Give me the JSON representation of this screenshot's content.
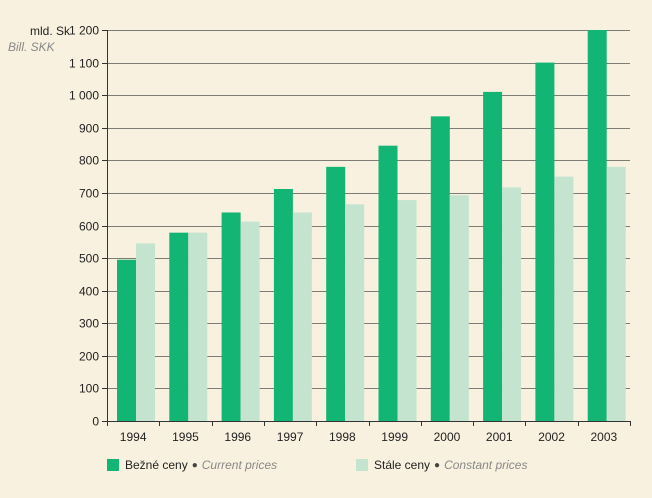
{
  "chart_data": {
    "type": "bar",
    "categories": [
      "1994",
      "1995",
      "1996",
      "1997",
      "1998",
      "1999",
      "2000",
      "2001",
      "2002",
      "2003"
    ],
    "series": [
      {
        "name": "Bežné ceny • Current prices",
        "values": [
          495,
          578,
          640,
          712,
          780,
          845,
          935,
          1010,
          1100,
          1200
        ],
        "color": "#12b574"
      },
      {
        "name": "Stále ceny • Constant prices",
        "values": [
          545,
          578,
          612,
          640,
          665,
          678,
          693,
          717,
          750,
          780
        ],
        "color": "#c4e4cf"
      }
    ],
    "ylabel": "mld. Sk",
    "ylabel_en": "Bill. SKK",
    "ylim": [
      0,
      1200
    ],
    "yticks": [
      0,
      100,
      200,
      300,
      400,
      500,
      600,
      700,
      800,
      900,
      1000,
      1100,
      1200
    ],
    "ytick_labels": [
      "0",
      "100",
      "200",
      "300",
      "400",
      "500",
      "600",
      "700",
      "800",
      "900",
      "1 000",
      "1 100",
      "1 200"
    ],
    "grid": true,
    "legend_position": "bottom"
  },
  "legend": {
    "current_sk": "Bežné ceny",
    "current_en": "Current prices",
    "constant_sk": "Stále ceny",
    "constant_en": "Constant prices",
    "separator": "●"
  },
  "colors": {
    "current": "#12b574",
    "constant": "#c4e4cf",
    "background": "#f9f1df"
  }
}
